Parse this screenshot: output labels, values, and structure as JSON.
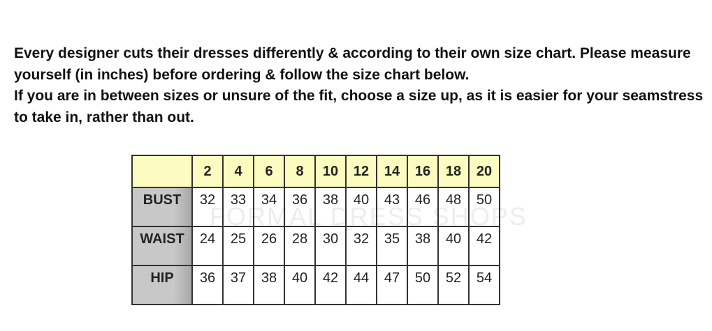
{
  "intro": {
    "paragraph1": "Every designer cuts their dresses differently & according to their own size chart. Please measure yourself (in inches) before ordering & follow the size chart below.",
    "paragraph2": "If you are in between sizes or unsure of the fit, choose a size up, as it is easier for your seamstress to take in, rather than out."
  },
  "size_chart": {
    "sizes": [
      "2",
      "4",
      "6",
      "8",
      "10",
      "12",
      "14",
      "16",
      "18",
      "20"
    ],
    "rows": [
      {
        "label": "BUST",
        "values": [
          "32",
          "33",
          "34",
          "36",
          "38",
          "40",
          "43",
          "46",
          "48",
          "50"
        ]
      },
      {
        "label": "WAIST",
        "values": [
          "24",
          "25",
          "26",
          "28",
          "30",
          "32",
          "35",
          "38",
          "40",
          "42"
        ]
      },
      {
        "label": "HIP",
        "values": [
          "36",
          "37",
          "38",
          "40",
          "42",
          "44",
          "47",
          "50",
          "52",
          "54"
        ]
      }
    ],
    "header_color": "#fcfcc0",
    "label_color": "#c8c8c8"
  },
  "watermark": "FORMAL DRESS SHOPS"
}
